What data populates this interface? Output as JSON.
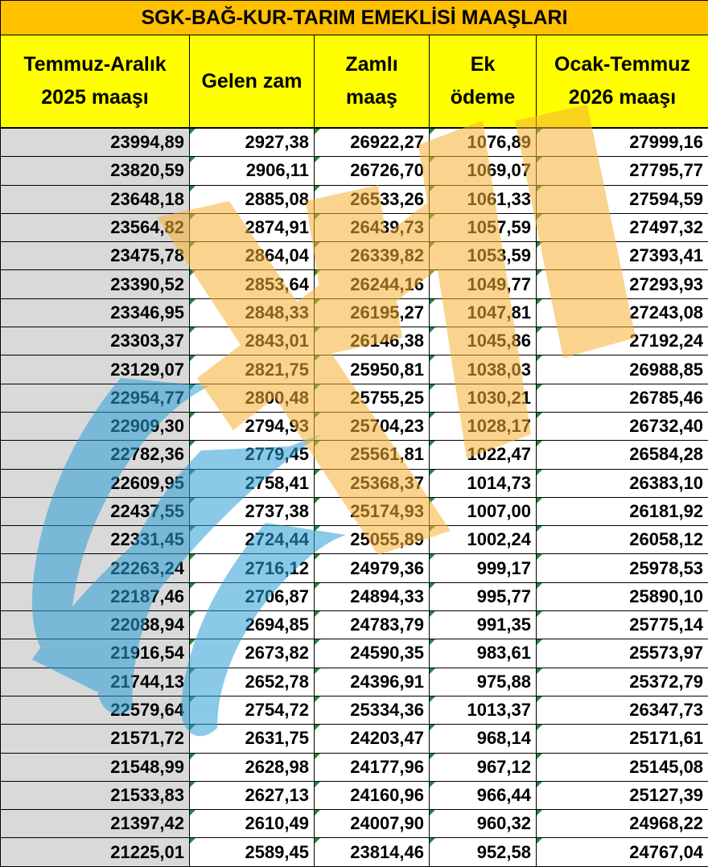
{
  "title": "SGK-BAĞ-KUR-TARIM EMEKLİSİ MAAŞLARI",
  "headers": [
    [
      "Temmuz-Aralık",
      "2025 maaşı"
    ],
    [
      "Gelen zam"
    ],
    [
      "Zamlı",
      "maaş"
    ],
    [
      "Ek",
      "ödeme"
    ],
    [
      "Ocak-Temmuz",
      "2026 maaşı"
    ]
  ],
  "rows": [
    [
      "23994,89",
      "2927,38",
      "26922,27",
      "1076,89",
      "27999,16"
    ],
    [
      "23820,59",
      "2906,11",
      "26726,70",
      "1069,07",
      "27795,77"
    ],
    [
      "23648,18",
      "2885,08",
      "26533,26",
      "1061,33",
      "27594,59"
    ],
    [
      "23564,82",
      "2874,91",
      "26439,73",
      "1057,59",
      "27497,32"
    ],
    [
      "23475,78",
      "2864,04",
      "26339,82",
      "1053,59",
      "27393,41"
    ],
    [
      "23390,52",
      "2853,64",
      "26244,16",
      "1049,77",
      "27293,93"
    ],
    [
      "23346,95",
      "2848,33",
      "26195,27",
      "1047,81",
      "27243,08"
    ],
    [
      "23303,37",
      "2843,01",
      "26146,38",
      "1045,86",
      "27192,24"
    ],
    [
      "23129,07",
      "2821,75",
      "25950,81",
      "1038,03",
      "26988,85"
    ],
    [
      "22954,77",
      "2800,48",
      "25755,25",
      "1030,21",
      "26785,46"
    ],
    [
      "22909,30",
      "2794,93",
      "25704,23",
      "1028,17",
      "26732,40"
    ],
    [
      "22782,36",
      "2779,45",
      "25561,81",
      "1022,47",
      "26584,28"
    ],
    [
      "22609,95",
      "2758,41",
      "25368,37",
      "1014,73",
      "26383,10"
    ],
    [
      "22437,55",
      "2737,38",
      "25174,93",
      "1007,00",
      "26181,92"
    ],
    [
      "22331,45",
      "2724,44",
      "25055,89",
      "1002,24",
      "26058,12"
    ],
    [
      "22263,24",
      "2716,12",
      "24979,36",
      "999,17",
      "25978,53"
    ],
    [
      "22187,46",
      "2706,87",
      "24894,33",
      "995,77",
      "25890,10"
    ],
    [
      "22088,94",
      "2694,85",
      "24783,79",
      "991,35",
      "25775,14"
    ],
    [
      "21916,54",
      "2673,82",
      "24590,35",
      "983,61",
      "25573,97"
    ],
    [
      "21744,13",
      "2652,78",
      "24396,91",
      "975,88",
      "25372,79"
    ],
    [
      "22579,64",
      "2754,72",
      "25334,36",
      "1013,37",
      "26347,73"
    ],
    [
      "21571,72",
      "2631,75",
      "24203,47",
      "968,14",
      "25171,61"
    ],
    [
      "21548,99",
      "2628,98",
      "24177,96",
      "967,12",
      "25145,08"
    ],
    [
      "21533,83",
      "2627,13",
      "24160,96",
      "966,44",
      "25127,39"
    ],
    [
      "21397,42",
      "2610,49",
      "24007,90",
      "960,32",
      "24968,22"
    ],
    [
      "21225,01",
      "2589,45",
      "23814,46",
      "952,58",
      "24767,04"
    ]
  ],
  "colors": {
    "title_bg": "#ffc000",
    "header_bg": "#ffff00",
    "first_col_bg": "#d9d9d9",
    "watermark_orange": "#f7b233",
    "watermark_blue": "#2c9fd6"
  }
}
